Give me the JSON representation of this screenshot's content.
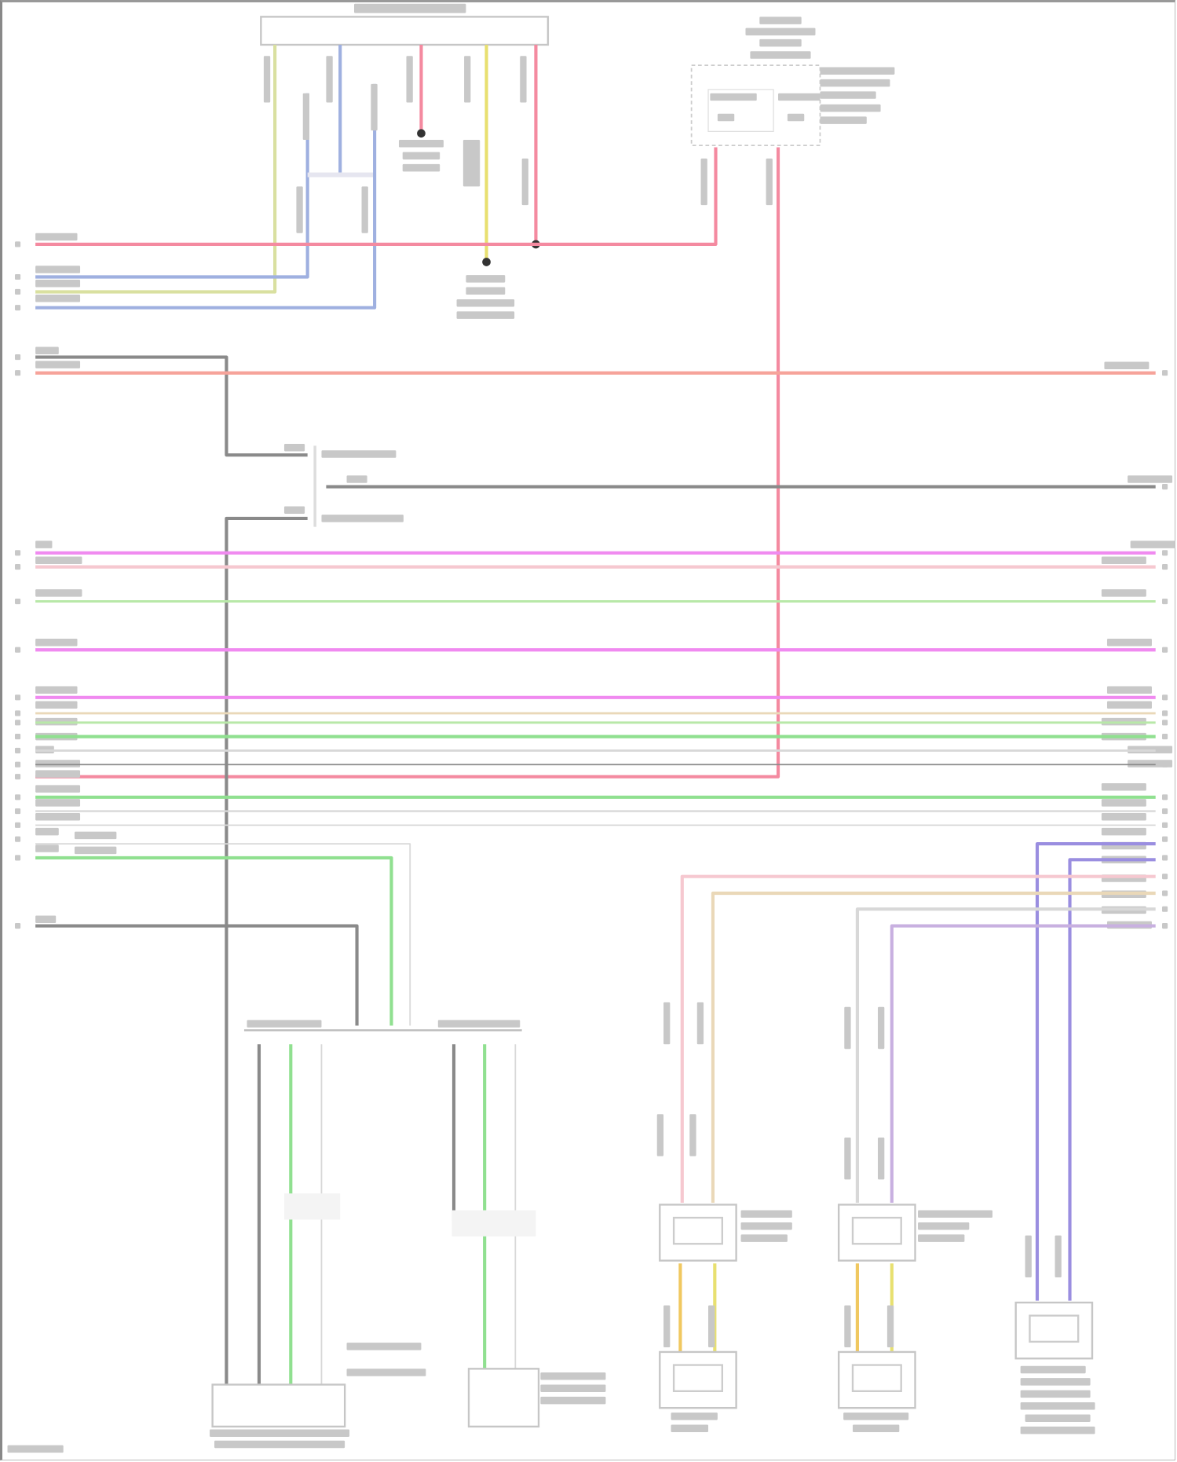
{
  "diagram": {
    "wire_colors": {
      "red": "#f48aa0",
      "orange_red": "#f6a39a",
      "blue": "#9fb0e0",
      "yellow_green": "#d9e0a0",
      "yellow": "#e8e070",
      "dark_gray": "#8a8a8a",
      "magenta": "#f08af0",
      "light_pink": "#f6c8d0",
      "light_green": "#b8e8a8",
      "green": "#90e090",
      "light_gray": "#d8d8d8",
      "purple": "#9a8ee0",
      "lavender": "#c8b0e0",
      "tan": "#ead8b8"
    }
  }
}
